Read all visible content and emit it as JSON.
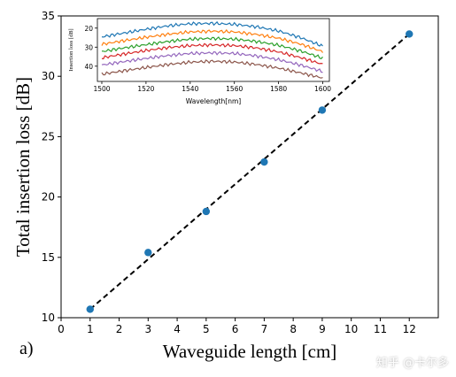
{
  "chart_data": [
    {
      "type": "scatter",
      "title": "",
      "xlabel": "Waveguide length [cm]",
      "ylabel": "Total insertion loss [dB]",
      "panel_label": "a)",
      "xlim": [
        0,
        13
      ],
      "ylim": [
        10,
        35
      ],
      "xticks": [
        0,
        1,
        2,
        3,
        4,
        5,
        6,
        7,
        8,
        9,
        10,
        11,
        12
      ],
      "yticks": [
        10,
        15,
        20,
        25,
        30,
        35
      ],
      "grid": false,
      "legend": "none",
      "series": [
        {
          "kind": "points",
          "color": "#1f77b4",
          "x": [
            1,
            3,
            5,
            7,
            9,
            12
          ],
          "y": [
            10.7,
            15.4,
            18.8,
            22.9,
            27.2,
            33.5
          ]
        },
        {
          "kind": "fit-line",
          "style": "dashed",
          "color": "#000000",
          "x": [
            1,
            12
          ],
          "y": [
            10.7,
            33.5
          ]
        }
      ]
    },
    {
      "type": "line",
      "position": "inset",
      "title": "",
      "xlabel": "Wavelength[nm]",
      "ylabel": "Insertion loss [dB]",
      "xlim": [
        1498,
        1603
      ],
      "ylim": [
        48,
        15
      ],
      "y_axis_inverted": true,
      "xticks": [
        1500,
        1520,
        1540,
        1560,
        1580,
        1600
      ],
      "yticks": [
        20,
        30,
        40
      ],
      "grid": false,
      "series": [
        {
          "color": "#1f77b4",
          "x": [
            1500,
            1510,
            1520,
            1530,
            1540,
            1550,
            1560,
            1570,
            1580,
            1590,
            1600
          ],
          "y": [
            24.6,
            22.6,
            20.6,
            18.8,
            17.7,
            17.5,
            18.0,
            19.3,
            21.5,
            25.0,
            29.5
          ]
        },
        {
          "color": "#ff7f0e",
          "x": [
            1500,
            1510,
            1520,
            1530,
            1540,
            1550,
            1560,
            1570,
            1580,
            1590,
            1600
          ],
          "y": [
            28.5,
            26.6,
            24.8,
            23.2,
            22.0,
            21.6,
            22.0,
            23.3,
            25.3,
            28.4,
            32.4
          ]
        },
        {
          "color": "#2ca02c",
          "x": [
            1500,
            1510,
            1520,
            1530,
            1540,
            1550,
            1560,
            1570,
            1580,
            1590,
            1600
          ],
          "y": [
            32.3,
            30.4,
            28.7,
            27.0,
            25.8,
            25.4,
            25.8,
            27.0,
            29.0,
            32.0,
            35.8
          ]
        },
        {
          "color": "#d62728",
          "x": [
            1500,
            1510,
            1520,
            1530,
            1540,
            1550,
            1560,
            1570,
            1580,
            1590,
            1600
          ],
          "y": [
            35.6,
            33.6,
            31.8,
            30.2,
            29.2,
            28.8,
            29.2,
            30.4,
            32.5,
            35.5,
            39.0
          ]
        },
        {
          "color": "#9467bd",
          "x": [
            1500,
            1510,
            1520,
            1530,
            1540,
            1550,
            1560,
            1570,
            1580,
            1590,
            1600
          ],
          "y": [
            39.4,
            37.6,
            35.9,
            34.4,
            33.3,
            33.0,
            33.3,
            34.6,
            36.6,
            39.4,
            42.8
          ]
        },
        {
          "color": "#8c564b",
          "x": [
            1500,
            1510,
            1520,
            1530,
            1540,
            1550,
            1560,
            1570,
            1580,
            1590,
            1600
          ],
          "y": [
            44.2,
            42.4,
            40.7,
            39.1,
            37.9,
            37.4,
            37.8,
            39.1,
            41.0,
            43.5,
            46.2
          ]
        }
      ]
    }
  ],
  "watermark": "知乎 @卡尔多"
}
